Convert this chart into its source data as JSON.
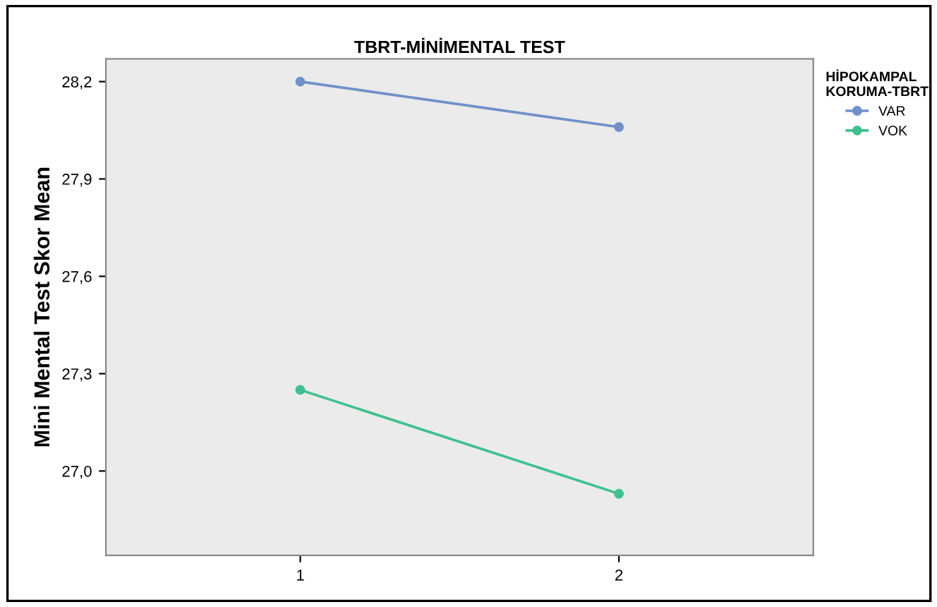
{
  "chart_data": {
    "type": "line",
    "title": "TBRT-MİNİMENTAL TEST",
    "ylabel": "Mini Mental Test Skor Mean",
    "legend_title": "HİPOKAMPAL\nKORUMA-TBRT",
    "x": [
      1,
      2
    ],
    "series": [
      {
        "name": "VAR",
        "color": "#7090c8",
        "values": [
          28.2,
          28.06
        ]
      },
      {
        "name": "VOK",
        "color": "#40c090",
        "values": [
          27.25,
          26.93
        ]
      }
    ],
    "xlim": [
      0.39,
      2.61
    ],
    "xticks": [
      1,
      2
    ],
    "ylim": [
      26.74,
      28.27
    ],
    "yticks": [
      {
        "value": 27.0,
        "label": "27,0"
      },
      {
        "value": 27.3,
        "label": "27,3"
      },
      {
        "value": 27.6,
        "label": "27,6"
      },
      {
        "value": 27.9,
        "label": "27,9"
      },
      {
        "value": 28.2,
        "label": "28,2"
      }
    ],
    "grid": false,
    "legend": "top right",
    "marker": "circle",
    "line_style": "solid"
  }
}
